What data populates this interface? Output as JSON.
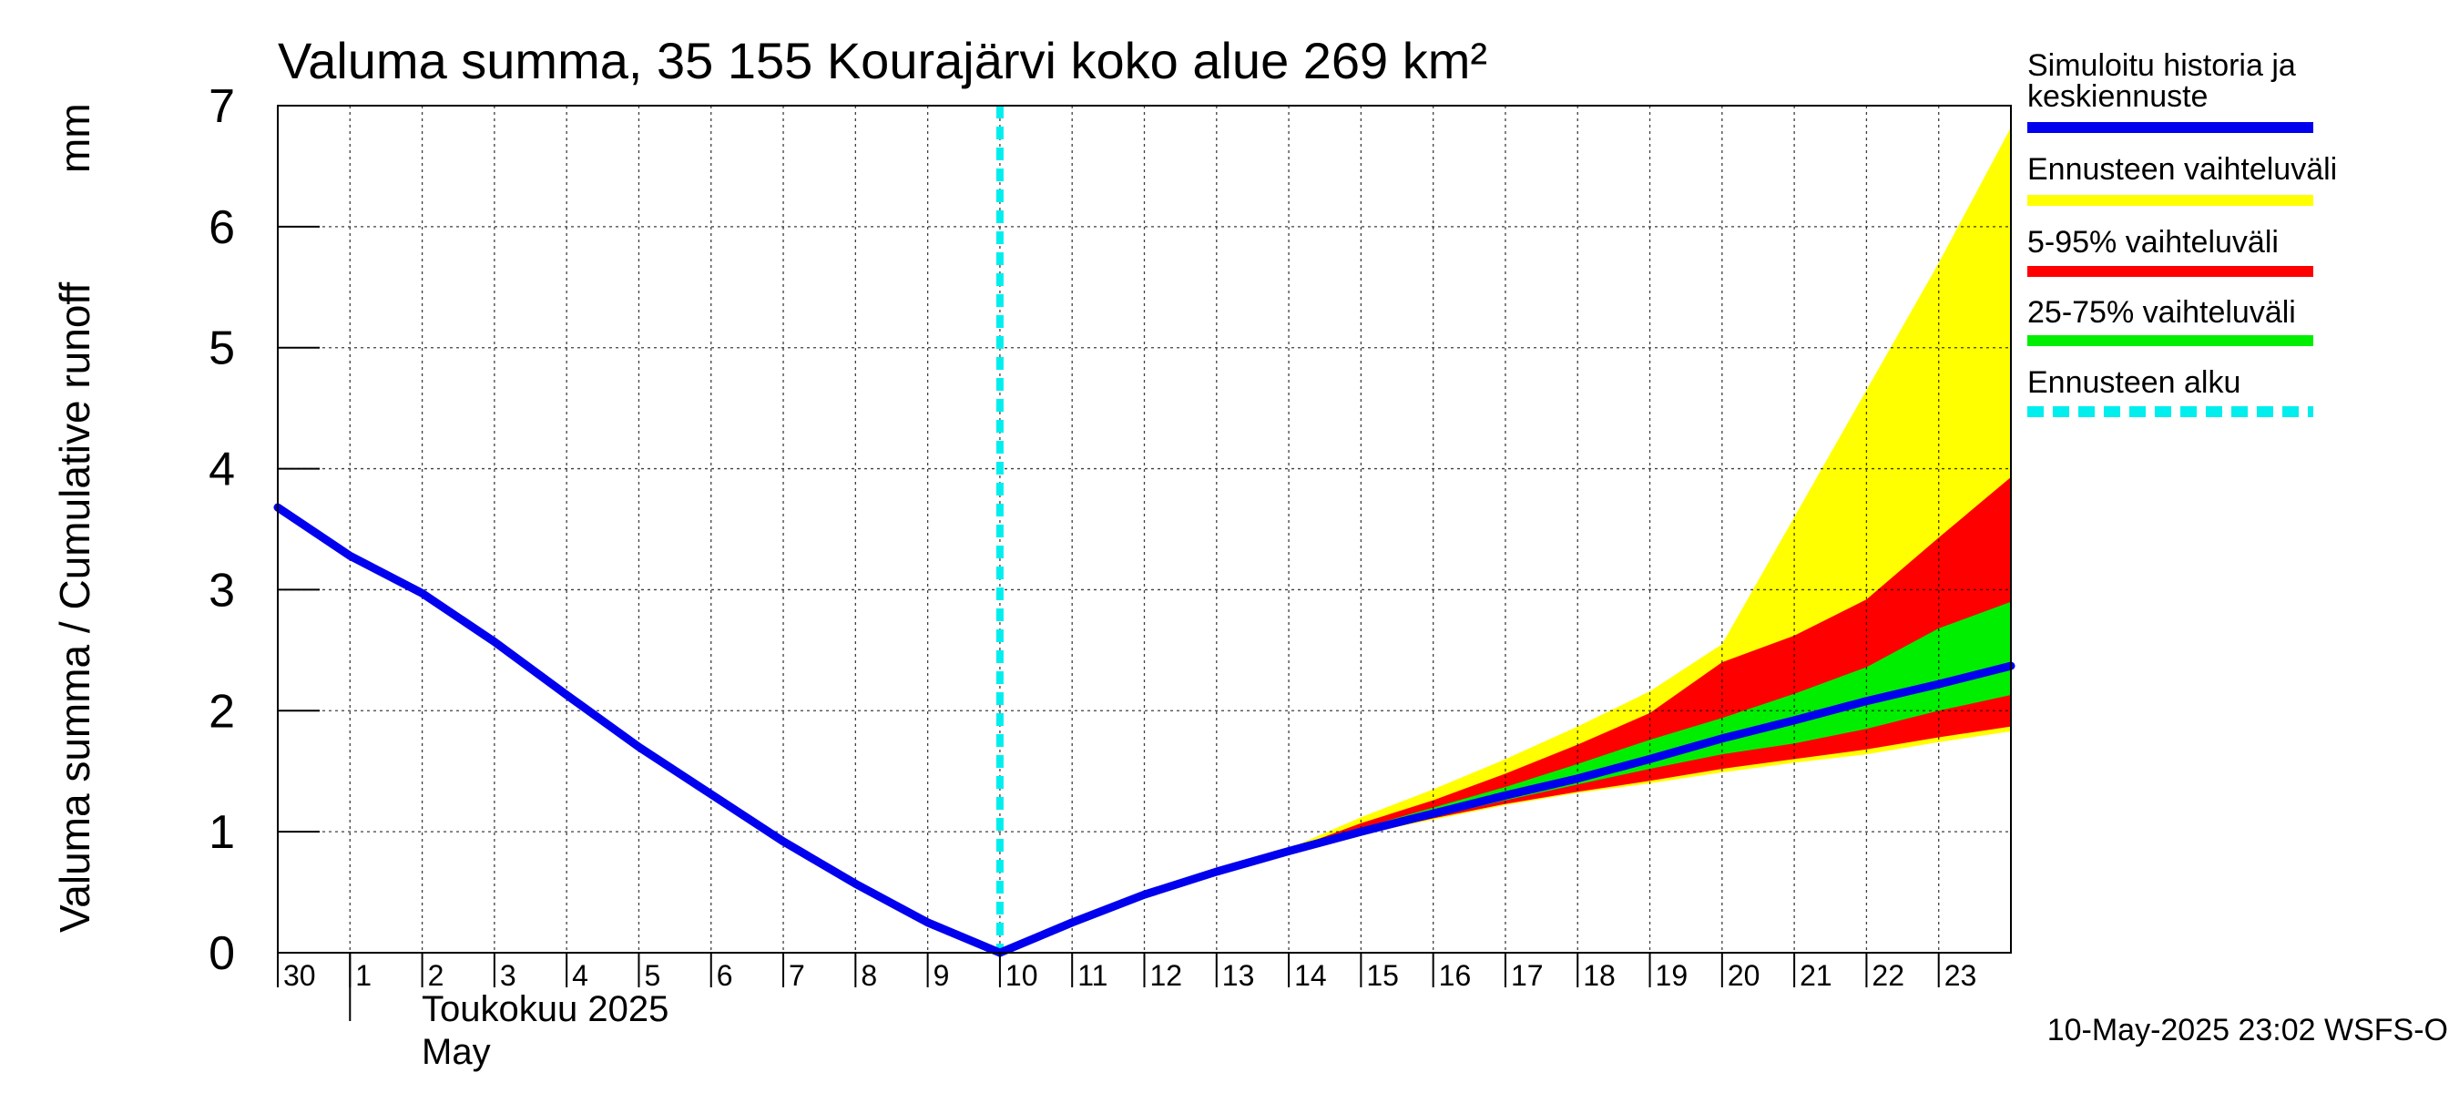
{
  "chart_data": {
    "type": "area",
    "title": "Valuma summa, 35 155 Kourajärvi koko alue 269 km²",
    "ylabel_left": "Valuma summa / Cumulative runoff",
    "ylabel_unit": "mm",
    "ylim": [
      0,
      7
    ],
    "yticks": [
      0,
      1,
      2,
      3,
      4,
      5,
      6,
      7
    ],
    "x_day_index_range": [
      0,
      24
    ],
    "xtick_labels": [
      "30",
      "1",
      "2",
      "3",
      "4",
      "5",
      "6",
      "7",
      "8",
      "9",
      "10",
      "11",
      "12",
      "13",
      "14",
      "15",
      "16",
      "17",
      "18",
      "19",
      "20",
      "21",
      "22",
      "23"
    ],
    "month_label_fi": "Toukokuu  2025",
    "month_label_en": "May",
    "grid": true,
    "forecast_start_index": 10,
    "history": {
      "x": [
        0,
        1,
        2,
        3,
        4,
        5,
        6,
        7,
        8,
        9,
        10
      ],
      "y": [
        3.68,
        3.28,
        2.97,
        2.57,
        2.13,
        1.7,
        1.31,
        0.92,
        0.57,
        0.25,
        0.0
      ]
    },
    "forecast_x": [
      10,
      11,
      12,
      13,
      14,
      15,
      16,
      17,
      18,
      19,
      20,
      21,
      22,
      23,
      24
    ],
    "median": [
      0.0,
      0.25,
      0.48,
      0.67,
      0.84,
      1.0,
      1.15,
      1.3,
      1.44,
      1.6,
      1.77,
      1.92,
      2.08,
      2.22,
      2.37
    ],
    "range_full": {
      "low": [
        0.0,
        0.25,
        0.48,
        0.67,
        0.83,
        0.98,
        1.1,
        1.22,
        1.32,
        1.4,
        1.49,
        1.57,
        1.64,
        1.74,
        1.83
      ],
      "high": [
        0.0,
        0.25,
        0.48,
        0.67,
        0.86,
        1.12,
        1.35,
        1.6,
        1.87,
        2.16,
        2.55,
        3.6,
        4.65,
        5.7,
        6.82
      ]
    },
    "range_5_95": {
      "low": [
        0.0,
        0.25,
        0.48,
        0.67,
        0.83,
        0.98,
        1.11,
        1.23,
        1.33,
        1.42,
        1.52,
        1.6,
        1.68,
        1.78,
        1.87
      ],
      "high": [
        0.0,
        0.25,
        0.48,
        0.67,
        0.85,
        1.07,
        1.26,
        1.48,
        1.72,
        1.98,
        2.4,
        2.62,
        2.92,
        3.43,
        3.93
      ]
    },
    "range_25_75": {
      "low": [
        0.0,
        0.25,
        0.48,
        0.67,
        0.84,
        0.99,
        1.12,
        1.26,
        1.39,
        1.52,
        1.64,
        1.73,
        1.85,
        2.0,
        2.13
      ],
      "high": [
        0.0,
        0.25,
        0.48,
        0.67,
        0.85,
        1.03,
        1.2,
        1.37,
        1.56,
        1.76,
        1.94,
        2.14,
        2.36,
        2.68,
        2.9
      ]
    },
    "colors": {
      "history_median": "#0000ee",
      "range_full": "#ffff00",
      "range_5_95": "#ff0000",
      "range_25_75": "#00ee00",
      "forecast_start": "#00eeee"
    },
    "legend": {
      "placement": "right",
      "entries": [
        {
          "line1": "Simuloitu historia ja",
          "line2": "keskiennuste",
          "color": "#0000ee",
          "style": "solid"
        },
        {
          "line1": "Ennusteen vaihteluväli",
          "line2": "",
          "color": "#ffff00",
          "style": "solid"
        },
        {
          "line1": "5-95% vaihteluväli",
          "line2": "",
          "color": "#ff0000",
          "style": "solid"
        },
        {
          "line1": "25-75% vaihteluväli",
          "line2": "",
          "color": "#00ee00",
          "style": "solid"
        },
        {
          "line1": "Ennusteen alku",
          "line2": "",
          "color": "#00eeee",
          "style": "dashed"
        }
      ]
    },
    "timestamp": "10-May-2025 23:02 WSFS-O"
  }
}
